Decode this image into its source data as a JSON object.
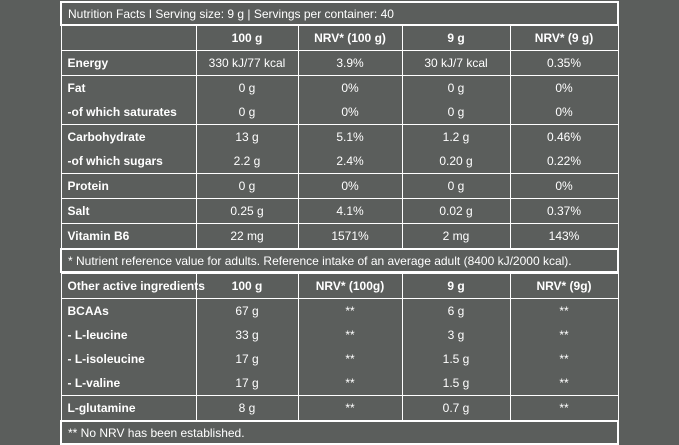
{
  "nutrition": {
    "title": "Nutrition Facts I Serving size: 9 g | Servings per container: 40",
    "header": [
      "",
      "100 g",
      "NRV* (100 g)",
      "9 g",
      "NRV* (9 g)"
    ],
    "groups": [
      [
        [
          "Energy",
          "330 kJ/77 kcal",
          "3.9%",
          "30 kJ/7 kcal",
          "0.35%"
        ]
      ],
      [
        [
          "Fat",
          "0 g",
          "0%",
          "0 g",
          "0%"
        ],
        [
          "-of which saturates",
          "0 g",
          "0%",
          "0 g",
          "0%"
        ]
      ],
      [
        [
          "Carbohydrate",
          "13 g",
          "5.1%",
          "1.2 g",
          "0.46%"
        ],
        [
          "-of which sugars",
          "2.2 g",
          "2.4%",
          "0.20 g",
          "0.22%"
        ]
      ],
      [
        [
          "Protein",
          "0 g",
          "0%",
          "0 g",
          "0%"
        ]
      ],
      [
        [
          "Salt",
          "0.25 g",
          "4.1%",
          "0.02 g",
          "0.37%"
        ]
      ],
      [
        [
          "Vitamin B6",
          "22 mg",
          "1571%",
          "2 mg",
          "143%"
        ]
      ]
    ],
    "footnote": "* Nutrient reference value for adults. Reference intake of an average adult (8400 kJ/2000 kcal)."
  },
  "ingredients": {
    "header": [
      "Other active ingredients",
      "100 g",
      "NRV* (100g)",
      "9 g",
      "NRV* (9g)"
    ],
    "groups": [
      [
        [
          "BCAAs",
          "67 g",
          "**",
          "6 g",
          "**"
        ],
        [
          "- L-leucine",
          "33 g",
          "**",
          "3 g",
          "**"
        ],
        [
          "- L-isoleucine",
          "17 g",
          "**",
          "1.5 g",
          "**"
        ],
        [
          "- L-valine",
          "17 g",
          "**",
          "1.5 g",
          "**"
        ]
      ],
      [
        [
          "L-glutamine",
          "8 g",
          "**",
          "0.7 g",
          "**"
        ]
      ]
    ],
    "footnote": "** No NRV has been established."
  }
}
